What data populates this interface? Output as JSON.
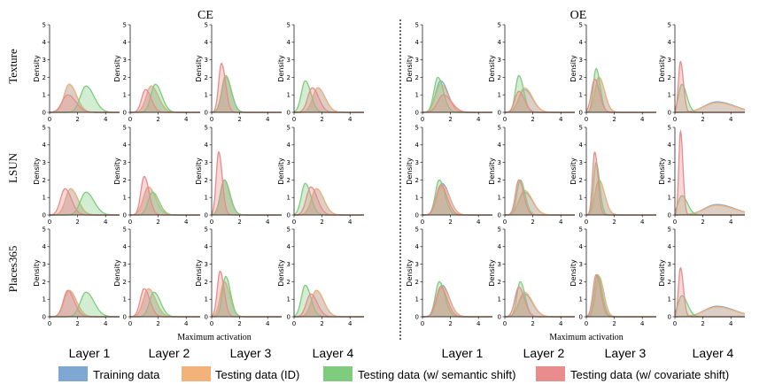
{
  "chart_data": {
    "type": "area",
    "groups": [
      {
        "title": "CE",
        "xlabel": "Maximum activation"
      },
      {
        "title": "OE",
        "xlabel": "Maximum activation"
      }
    ],
    "row_labels": [
      "Texture",
      "LSUN",
      "Places365"
    ],
    "col_labels": [
      "Layer 1",
      "Layer 2",
      "Layer 3",
      "Layer 4"
    ],
    "ylabel": "Density",
    "xlim": [
      0,
      5
    ],
    "ylim": [
      0,
      5
    ],
    "xticks": [
      "0",
      "2",
      "4"
    ],
    "yticks": [
      "0",
      "1",
      "2",
      "3",
      "4",
      "5"
    ],
    "series": [
      {
        "name": "Training data",
        "color": "#7ea8d1"
      },
      {
        "name": "Testing data (ID)",
        "color": "#f2b27a"
      },
      {
        "name": "Testing data (w/ semantic shift)",
        "color": "#7fcc7f"
      },
      {
        "name": "Testing data (w/ covariate shift)",
        "color": "#e88c8c"
      }
    ],
    "curve_params_note": "each curve given as [peak x, peak density, width]",
    "panels": [
      [
        {
          "group": "CE",
          "row": "Texture",
          "col": "Layer 1",
          "curves": [
            [
              1.4,
              1.6,
              0.45
            ],
            [
              1.4,
              1.6,
              0.45
            ],
            [
              2.6,
              1.5,
              0.5
            ],
            [
              1.3,
              1.0,
              0.5
            ]
          ]
        },
        {
          "group": "CE",
          "row": "Texture",
          "col": "Layer 2",
          "curves": [
            [
              1.5,
              1.5,
              0.45
            ],
            [
              1.5,
              1.5,
              0.45
            ],
            [
              1.8,
              1.6,
              0.4
            ],
            [
              1.1,
              1.3,
              0.35
            ]
          ]
        },
        {
          "group": "CE",
          "row": "Texture",
          "col": "Layer 3",
          "curves": [
            [
              1.0,
              2.0,
              0.35
            ],
            [
              1.0,
              2.0,
              0.35
            ],
            [
              1.0,
              2.1,
              0.35
            ],
            [
              0.7,
              2.8,
              0.25
            ]
          ]
        },
        {
          "group": "CE",
          "row": "Texture",
          "col": "Layer 4",
          "curves": [
            [
              1.7,
              1.4,
              0.45
            ],
            [
              1.7,
              1.4,
              0.45
            ],
            [
              0.8,
              1.8,
              0.35
            ],
            [
              1.3,
              1.4,
              0.4
            ]
          ]
        },
        {
          "group": "OE",
          "row": "Texture",
          "col": "Layer 1",
          "curves": [
            [
              1.3,
              1.8,
              0.45
            ],
            [
              1.3,
              1.6,
              0.45
            ],
            [
              1.1,
              2.0,
              0.35
            ],
            [
              1.5,
              1.0,
              0.5
            ]
          ]
        },
        {
          "group": "OE",
          "row": "Texture",
          "col": "Layer 2",
          "curves": [
            [
              1.4,
              1.3,
              0.5
            ],
            [
              1.4,
              1.4,
              0.5
            ],
            [
              1.0,
              2.1,
              0.3
            ],
            [
              1.0,
              1.2,
              0.35
            ]
          ]
        },
        {
          "group": "OE",
          "row": "Texture",
          "col": "Layer 3",
          "curves": [
            [
              0.9,
              2.0,
              0.35
            ],
            [
              0.9,
              2.0,
              0.35
            ],
            [
              0.7,
              2.5,
              0.25
            ],
            [
              0.6,
              1.9,
              0.3
            ]
          ]
        },
        {
          "group": "OE",
          "row": "Texture",
          "col": "Layer 4",
          "curves": [
            [
              3.0,
              0.6,
              1.1
            ],
            [
              3.0,
              0.55,
              1.1
            ],
            [
              0.5,
              1.6,
              0.3
            ],
            [
              0.4,
              2.9,
              0.18
            ]
          ]
        }
      ],
      [
        {
          "group": "CE",
          "row": "LSUN",
          "col": "Layer 1",
          "curves": [
            [
              1.5,
              1.5,
              0.45
            ],
            [
              1.5,
              1.5,
              0.45
            ],
            [
              2.6,
              1.3,
              0.5
            ],
            [
              1.1,
              1.5,
              0.4
            ]
          ]
        },
        {
          "group": "CE",
          "row": "LSUN",
          "col": "Layer 2",
          "curves": [
            [
              1.3,
              1.6,
              0.45
            ],
            [
              1.3,
              1.6,
              0.45
            ],
            [
              1.6,
              1.3,
              0.4
            ],
            [
              1.0,
              2.2,
              0.3
            ]
          ]
        },
        {
          "group": "CE",
          "row": "LSUN",
          "col": "Layer 3",
          "curves": [
            [
              0.9,
              2.0,
              0.35
            ],
            [
              0.9,
              2.0,
              0.35
            ],
            [
              0.9,
              2.0,
              0.35
            ],
            [
              0.5,
              3.6,
              0.22
            ]
          ]
        },
        {
          "group": "CE",
          "row": "LSUN",
          "col": "Layer 4",
          "curves": [
            [
              1.6,
              1.5,
              0.45
            ],
            [
              1.6,
              1.5,
              0.45
            ],
            [
              0.8,
              1.8,
              0.35
            ],
            [
              1.2,
              1.6,
              0.4
            ]
          ]
        },
        {
          "group": "OE",
          "row": "LSUN",
          "col": "Layer 1",
          "curves": [
            [
              1.4,
              1.8,
              0.45
            ],
            [
              1.4,
              1.7,
              0.45
            ],
            [
              1.2,
              2.0,
              0.35
            ],
            [
              1.3,
              1.7,
              0.4
            ]
          ]
        },
        {
          "group": "OE",
          "row": "LSUN",
          "col": "Layer 2",
          "curves": [
            [
              1.4,
              1.3,
              0.5
            ],
            [
              1.4,
              1.4,
              0.5
            ],
            [
              1.1,
              2.0,
              0.3
            ],
            [
              1.0,
              2.0,
              0.3
            ]
          ]
        },
        {
          "group": "OE",
          "row": "LSUN",
          "col": "Layer 3",
          "curves": [
            [
              0.9,
              2.0,
              0.35
            ],
            [
              0.9,
              2.0,
              0.35
            ],
            [
              0.7,
              3.0,
              0.22
            ],
            [
              0.6,
              3.6,
              0.2
            ]
          ]
        },
        {
          "group": "OE",
          "row": "LSUN",
          "col": "Layer 4",
          "curves": [
            [
              3.0,
              0.6,
              1.1
            ],
            [
              3.0,
              0.55,
              1.1
            ],
            [
              0.5,
              1.1,
              0.35
            ],
            [
              0.4,
              4.8,
              0.15
            ]
          ]
        }
      ],
      [
        {
          "group": "CE",
          "row": "Places365",
          "col": "Layer 1",
          "curves": [
            [
              1.4,
              1.5,
              0.45
            ],
            [
              1.4,
              1.5,
              0.45
            ],
            [
              2.6,
              1.4,
              0.5
            ],
            [
              1.3,
              1.5,
              0.4
            ]
          ]
        },
        {
          "group": "CE",
          "row": "Places365",
          "col": "Layer 2",
          "curves": [
            [
              1.3,
              1.6,
              0.45
            ],
            [
              1.3,
              1.6,
              0.45
            ],
            [
              1.7,
              1.4,
              0.4
            ],
            [
              1.0,
              1.6,
              0.35
            ]
          ]
        },
        {
          "group": "CE",
          "row": "Places365",
          "col": "Layer 3",
          "curves": [
            [
              0.9,
              2.0,
              0.35
            ],
            [
              0.9,
              2.0,
              0.35
            ],
            [
              1.0,
              2.3,
              0.3
            ],
            [
              0.6,
              2.6,
              0.25
            ]
          ]
        },
        {
          "group": "CE",
          "row": "Places365",
          "col": "Layer 4",
          "curves": [
            [
              1.6,
              1.5,
              0.45
            ],
            [
              1.6,
              1.5,
              0.45
            ],
            [
              0.8,
              1.8,
              0.35
            ],
            [
              1.2,
              1.3,
              0.4
            ]
          ]
        },
        {
          "group": "OE",
          "row": "Places365",
          "col": "Layer 1",
          "curves": [
            [
              1.4,
              1.8,
              0.45
            ],
            [
              1.4,
              1.7,
              0.45
            ],
            [
              1.2,
              2.0,
              0.35
            ],
            [
              1.3,
              1.7,
              0.4
            ]
          ]
        },
        {
          "group": "OE",
          "row": "Places365",
          "col": "Layer 2",
          "curves": [
            [
              1.4,
              1.3,
              0.5
            ],
            [
              1.4,
              1.4,
              0.5
            ],
            [
              1.1,
              2.0,
              0.3
            ],
            [
              1.0,
              1.7,
              0.35
            ]
          ]
        },
        {
          "group": "OE",
          "row": "Places365",
          "col": "Layer 3",
          "curves": [
            [
              0.9,
              2.3,
              0.3
            ],
            [
              0.9,
              2.3,
              0.3
            ],
            [
              0.8,
              2.4,
              0.28
            ],
            [
              0.7,
              2.4,
              0.28
            ]
          ]
        },
        {
          "group": "OE",
          "row": "Places365",
          "col": "Layer 4",
          "curves": [
            [
              3.0,
              0.6,
              1.1
            ],
            [
              3.0,
              0.55,
              1.1
            ],
            [
              0.5,
              1.2,
              0.35
            ],
            [
              0.4,
              2.8,
              0.18
            ]
          ]
        }
      ]
    ]
  }
}
